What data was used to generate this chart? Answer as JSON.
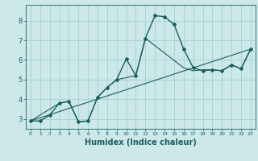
{
  "xlabel": "Humidex (Indice chaleur)",
  "bg_color": "#cce8e8",
  "grid_color": "#aad4d4",
  "line_color": "#1a6060",
  "xlim": [
    -0.5,
    23.5
  ],
  "ylim": [
    2.5,
    8.8
  ],
  "yticks": [
    3,
    4,
    5,
    6,
    7,
    8
  ],
  "xticks": [
    0,
    1,
    2,
    3,
    4,
    5,
    6,
    7,
    8,
    9,
    10,
    11,
    12,
    13,
    14,
    15,
    16,
    17,
    18,
    19,
    20,
    21,
    22,
    23
  ],
  "series1_x": [
    0,
    1,
    2,
    3,
    4,
    5,
    6,
    7,
    8,
    9,
    10,
    11,
    12,
    13,
    14,
    15,
    16,
    17,
    18,
    19,
    20,
    21,
    22,
    23
  ],
  "series1_y": [
    2.9,
    2.9,
    3.2,
    3.8,
    3.9,
    2.85,
    2.9,
    4.1,
    4.6,
    5.0,
    6.05,
    5.2,
    7.1,
    8.25,
    8.2,
    7.8,
    6.55,
    5.6,
    5.45,
    5.5,
    5.45,
    5.75,
    5.55,
    6.55
  ],
  "series2_x": [
    0,
    3,
    4,
    5,
    6,
    7,
    8,
    9,
    11,
    12,
    16,
    17,
    18,
    19,
    20,
    21,
    22,
    23
  ],
  "series2_y": [
    2.9,
    3.8,
    3.9,
    2.85,
    2.9,
    4.1,
    4.6,
    5.0,
    5.2,
    7.1,
    5.6,
    5.45,
    5.5,
    5.5,
    5.45,
    5.75,
    5.55,
    6.55
  ],
  "series3_x": [
    0,
    23
  ],
  "series3_y": [
    2.9,
    6.55
  ]
}
